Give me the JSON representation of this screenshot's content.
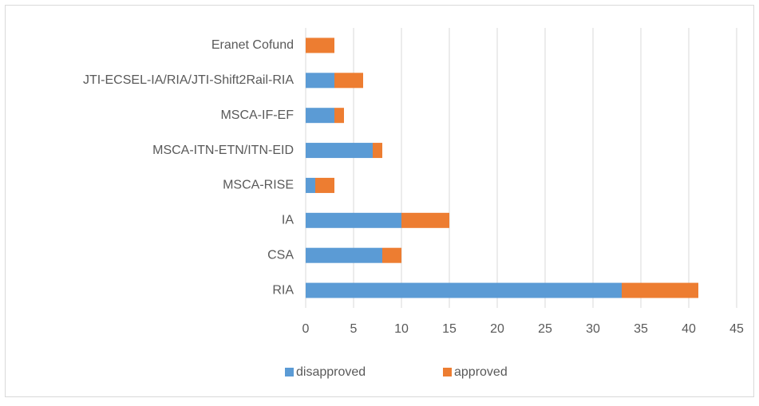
{
  "chart_data": {
    "type": "stacked-bar-horizontal",
    "categories": [
      "Eranet Cofund",
      "JTI-ECSEL-IA/RIA/JTI-Shift2Rail-RIA",
      "MSCA-IF-EF",
      "MSCA-ITN-ETN/ITN-EID",
      "MSCA-RISE",
      "IA",
      "CSA",
      "RIA"
    ],
    "series": [
      {
        "name": "disapproved",
        "color": "#5b9bd5",
        "values": [
          0,
          3,
          3,
          7,
          1,
          10,
          8,
          33
        ]
      },
      {
        "name": "approved",
        "color": "#ed7d31",
        "values": [
          3,
          3,
          1,
          1,
          2,
          5,
          2,
          8
        ]
      }
    ],
    "xlim": [
      0,
      45
    ],
    "xticks": [
      0,
      5,
      10,
      15,
      20,
      25,
      30,
      35,
      40,
      45
    ],
    "grid": true,
    "legend": "bottom"
  }
}
